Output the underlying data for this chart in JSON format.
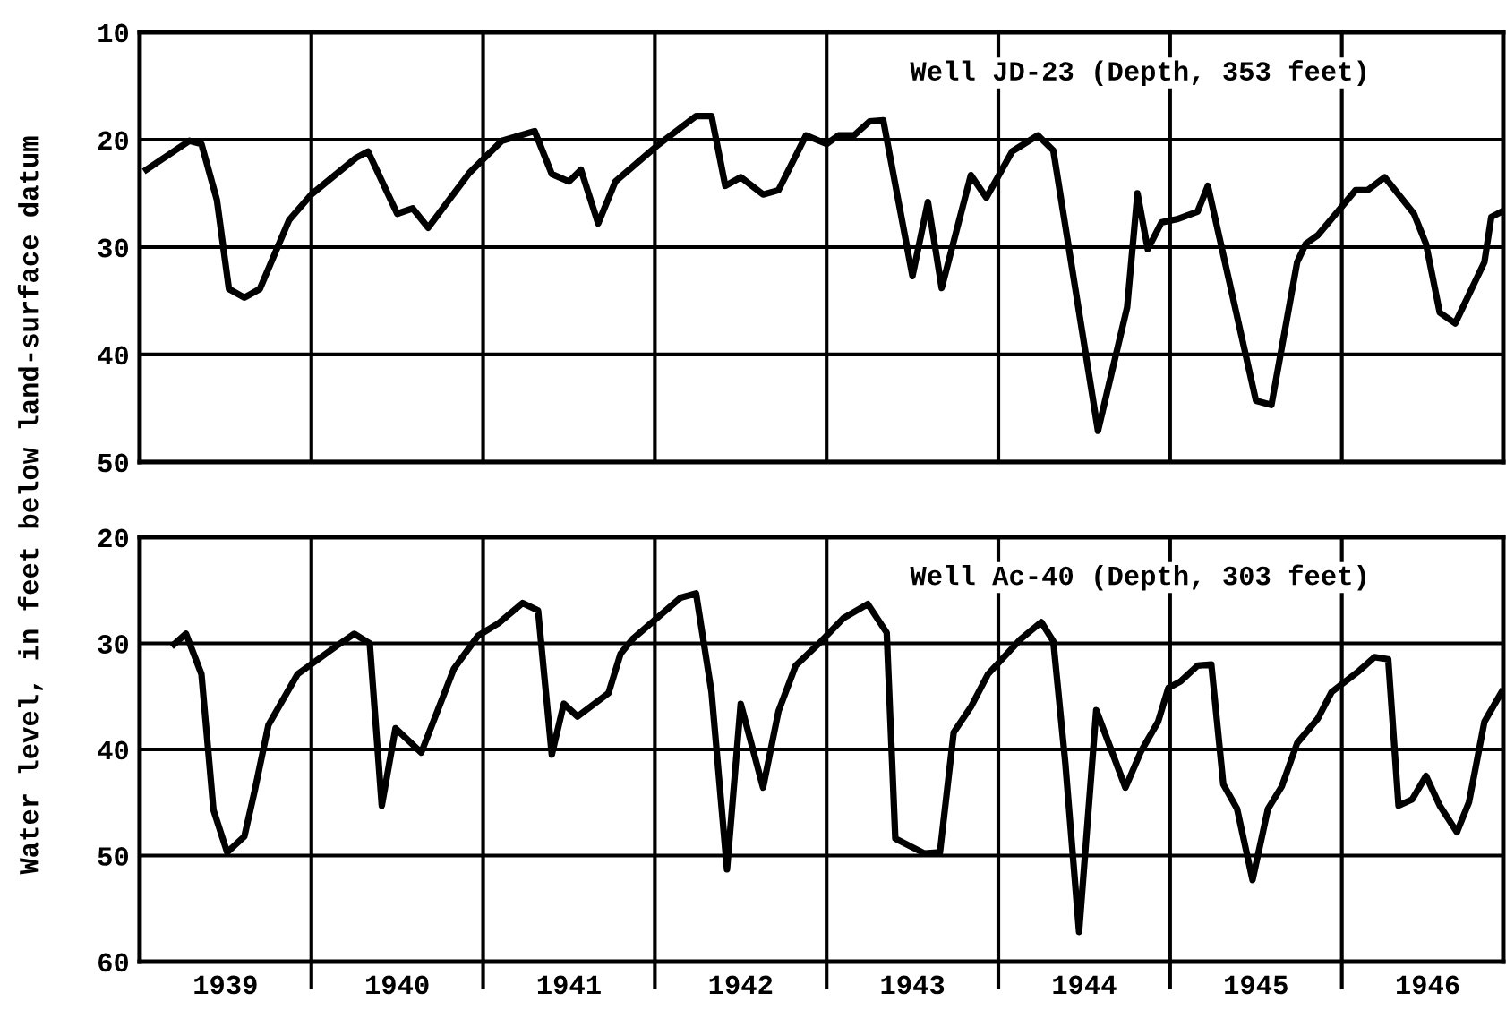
{
  "chart_data": [
    {
      "type": "line",
      "ylabel": "Water level, in feet below land-surface datum",
      "annotations": [
        "Well JD-23 (Depth, 353 feet)"
      ],
      "xlim": [
        1939.0,
        1946.94
      ],
      "ylim": [
        50,
        10
      ],
      "yticks": [
        10,
        20,
        30,
        40,
        50
      ],
      "xticks": [
        {
          "value": 1940,
          "label": null
        },
        {
          "value": 1941,
          "label": null
        },
        {
          "value": 1942,
          "label": null
        },
        {
          "value": 1943,
          "label": null
        },
        {
          "value": 1944,
          "label": null
        },
        {
          "value": 1945,
          "label": null
        },
        {
          "value": 1946,
          "label": null
        }
      ],
      "tick_labels": "y",
      "grid": true,
      "marker": "none",
      "line_style": "solid",
      "series": [
        {
          "color": "#000000",
          "x": [
            1939.04,
            1939.29,
            1939.36,
            1939.45,
            1939.52,
            1939.61,
            1939.7,
            1939.87,
            1940.0,
            1940.26,
            1940.33,
            1940.5,
            1940.59,
            1940.68,
            1940.92,
            1941.11,
            1941.3,
            1941.4,
            1941.5,
            1941.57,
            1941.67,
            1941.77,
            1942.01,
            1942.24,
            1942.33,
            1942.41,
            1942.5,
            1942.63,
            1942.72,
            1942.88,
            1943.0,
            1943.07,
            1943.16,
            1943.25,
            1943.33,
            1943.5,
            1943.59,
            1943.67,
            1943.84,
            1943.93,
            1944.08,
            1944.23,
            1944.32,
            1944.58,
            1944.75,
            1944.81,
            1944.87,
            1944.95,
            1945.04,
            1945.16,
            1945.22,
            1945.5,
            1945.59,
            1945.74,
            1945.79,
            1945.86,
            1946.08,
            1946.15,
            1946.25,
            1946.34,
            1946.42,
            1946.49,
            1946.57,
            1946.66,
            1946.83,
            1946.87,
            1946.93
          ],
          "values": [
            22.8,
            20.1,
            20.4,
            25.6,
            33.9,
            34.7,
            33.9,
            27.5,
            25.1,
            21.7,
            21.1,
            26.9,
            26.4,
            28.2,
            23.1,
            20.1,
            19.2,
            23.2,
            23.9,
            22.8,
            27.8,
            23.9,
            20.6,
            17.8,
            17.8,
            24.3,
            23.5,
            25.1,
            24.7,
            19.6,
            20.4,
            19.6,
            19.6,
            18.3,
            18.2,
            32.7,
            25.8,
            33.8,
            23.3,
            25.4,
            21.1,
            19.6,
            21.0,
            47.1,
            35.6,
            25.0,
            30.2,
            27.7,
            27.4,
            26.7,
            24.3,
            44.3,
            44.7,
            31.4,
            29.7,
            28.9,
            24.7,
            24.7,
            23.5,
            25.3,
            26.9,
            29.7,
            36.1,
            37.1,
            31.4,
            27.2,
            26.7
          ]
        }
      ]
    },
    {
      "type": "line",
      "annotations": [
        "Well Ac-40 (Depth, 303 feet)"
      ],
      "xlim": [
        1939.0,
        1946.94
      ],
      "ylim": [
        60,
        20
      ],
      "yticks": [
        20,
        30,
        40,
        50,
        60
      ],
      "xticks": [
        {
          "value": 1939.5,
          "label": "1939"
        },
        {
          "value": 1940,
          "label": null
        },
        {
          "value": 1940.5,
          "label": "1940"
        },
        {
          "value": 1941,
          "label": null
        },
        {
          "value": 1941.5,
          "label": "1941"
        },
        {
          "value": 1942,
          "label": null
        },
        {
          "value": 1942.5,
          "label": "1942"
        },
        {
          "value": 1943,
          "label": null
        },
        {
          "value": 1943.5,
          "label": "1943"
        },
        {
          "value": 1944,
          "label": null
        },
        {
          "value": 1944.5,
          "label": "1944"
        },
        {
          "value": 1945,
          "label": null
        },
        {
          "value": 1945.5,
          "label": "1945"
        },
        {
          "value": 1946,
          "label": null
        },
        {
          "value": 1946.5,
          "label": "1946"
        }
      ],
      "grid": true,
      "marker": "none",
      "line_style": "solid",
      "series": [
        {
          "color": "#000000",
          "x": [
            1939.2,
            1939.27,
            1939.36,
            1939.43,
            1939.51,
            1939.61,
            1939.67,
            1939.75,
            1939.92,
            1940.16,
            1940.25,
            1940.34,
            1940.41,
            1940.49,
            1940.64,
            1940.83,
            1940.97,
            1941.09,
            1941.23,
            1941.32,
            1941.4,
            1941.47,
            1941.55,
            1941.73,
            1941.8,
            1941.87,
            1942.15,
            1942.24,
            1942.33,
            1942.42,
            1942.5,
            1942.63,
            1942.72,
            1942.82,
            1942.95,
            1943.1,
            1943.24,
            1943.35,
            1943.4,
            1943.57,
            1943.66,
            1943.74,
            1943.84,
            1943.94,
            1944.13,
            1944.25,
            1944.32,
            1944.39,
            1944.47,
            1944.57,
            1944.74,
            1944.83,
            1944.93,
            1944.99,
            1945.06,
            1945.16,
            1945.24,
            1945.31,
            1945.39,
            1945.48,
            1945.57,
            1945.65,
            1945.74,
            1945.86,
            1945.94,
            1946.1,
            1946.19,
            1946.27,
            1946.33,
            1946.41,
            1946.49,
            1946.57,
            1946.67,
            1946.74,
            1946.83,
            1946.93
          ],
          "values": [
            30.1,
            29.1,
            32.9,
            45.7,
            49.7,
            48.2,
            43.9,
            37.7,
            32.9,
            30.1,
            29.1,
            30.0,
            45.3,
            38.0,
            40.3,
            32.4,
            29.3,
            28.1,
            26.2,
            26.9,
            40.5,
            35.7,
            36.9,
            34.7,
            31.0,
            29.6,
            25.7,
            25.3,
            34.6,
            51.3,
            35.7,
            43.6,
            36.4,
            32.1,
            30.1,
            27.6,
            26.3,
            29.0,
            48.4,
            49.8,
            49.7,
            38.4,
            36.0,
            32.9,
            29.6,
            28.0,
            29.8,
            41.3,
            57.2,
            36.3,
            43.6,
            40.2,
            37.4,
            34.2,
            33.6,
            32.1,
            32.0,
            43.3,
            45.6,
            52.3,
            45.6,
            43.5,
            39.4,
            37.1,
            34.6,
            32.6,
            31.3,
            31.5,
            45.3,
            44.7,
            42.5,
            45.3,
            47.8,
            45.0,
            37.4,
            34.6
          ]
        }
      ]
    }
  ]
}
